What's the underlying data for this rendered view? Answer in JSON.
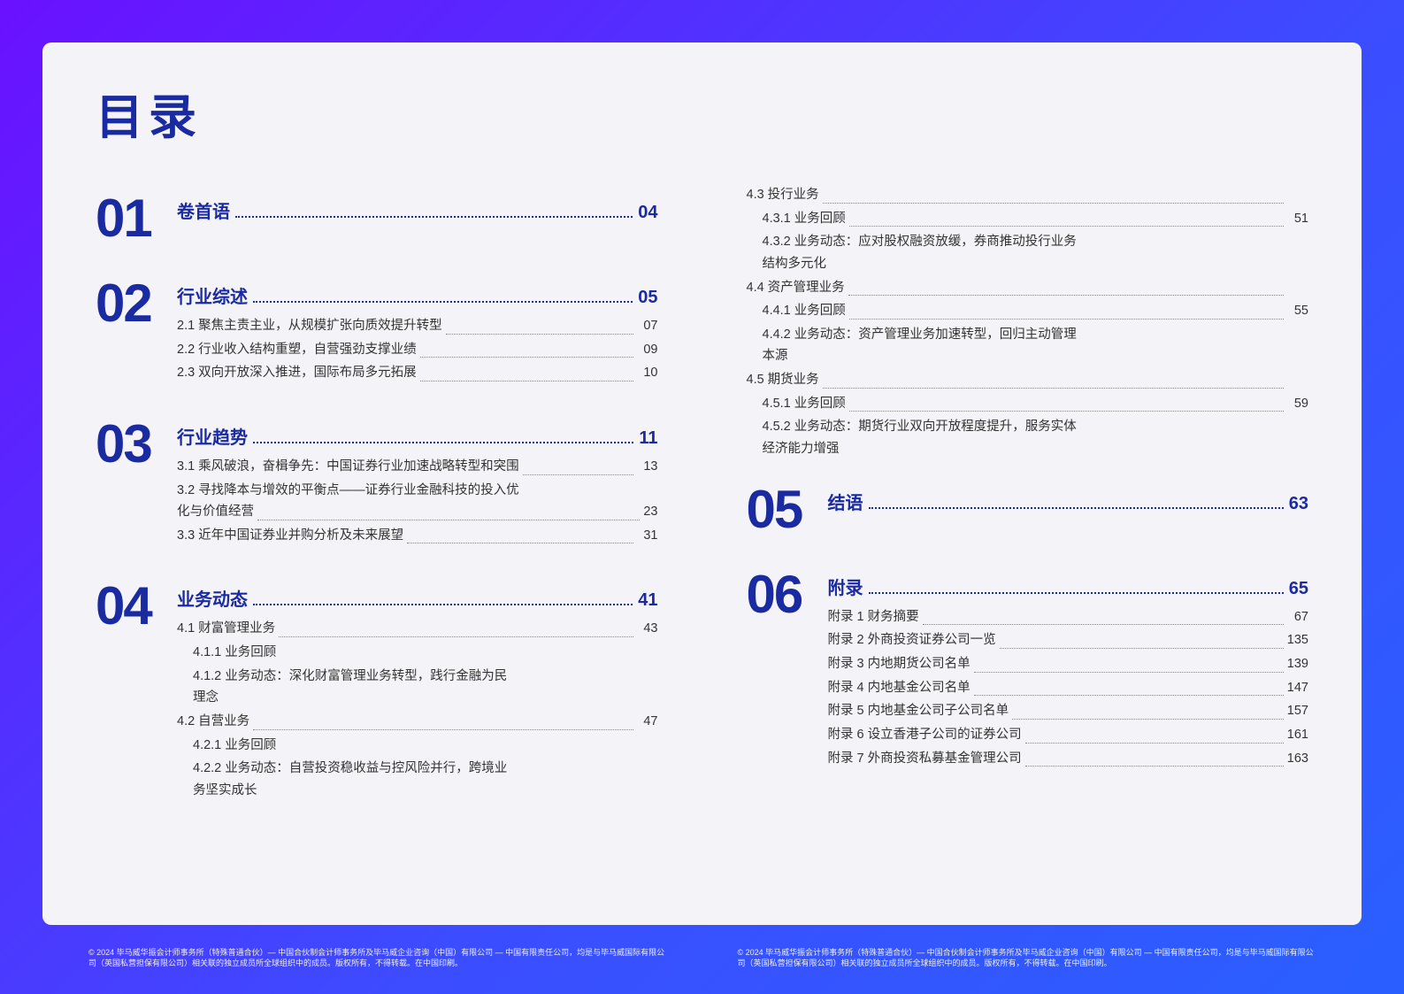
{
  "colors": {
    "accent": "#1a2aa0",
    "bg_card": "#f4f3f7",
    "bg_gradient_start": "#6a11ff",
    "bg_gradient_end": "#2a5fff",
    "text": "#333333",
    "dots_light": "#888888"
  },
  "title": "目录",
  "sections": [
    {
      "num": "01",
      "heading": "卷首语",
      "page": "04",
      "items": []
    },
    {
      "num": "02",
      "heading": "行业综述",
      "page": "05",
      "items": [
        {
          "label": "2.1 聚焦主责主业，从规模扩张向质效提升转型",
          "page": "07"
        },
        {
          "label": "2.2 行业收入结构重塑，自营强劲支撑业绩",
          "page": "09"
        },
        {
          "label": "2.3 双向开放深入推进，国际布局多元拓展",
          "page": "10"
        }
      ]
    },
    {
      "num": "03",
      "heading": "行业趋势",
      "page": "11",
      "items": [
        {
          "label": "3.1 乘风破浪，奋楫争先：中国证券行业加速战略转型和突围",
          "page": "13"
        },
        {
          "wrap": true,
          "line1": "3.2 寻找降本与增效的平衡点——证券行业金融科技的投入优",
          "line2": "化与价值经营",
          "page": "23"
        },
        {
          "label": "3.3 近年中国证券业并购分析及未来展望",
          "page": "31"
        }
      ]
    },
    {
      "num": "04",
      "heading": "业务动态",
      "page": "41",
      "items": [
        {
          "label": "4.1 财富管理业务",
          "page": "43"
        },
        {
          "label": "4.1.1 业务回顾",
          "indent": 1,
          "nopg": true
        },
        {
          "wrap": true,
          "indent": 1,
          "line1": "4.1.2 业务动态：深化财富管理业务转型，践行金融为民",
          "line2": "理念",
          "nopg": true
        },
        {
          "label": "4.2 自营业务",
          "page": "47"
        },
        {
          "label": "4.2.1 业务回顾",
          "indent": 1,
          "nopg": true
        },
        {
          "wrap": true,
          "indent": 1,
          "line1": "4.2.2 业务动态：自营投资稳收益与控风险并行，跨境业",
          "line2": "务坚实成长",
          "nopg": true
        }
      ]
    }
  ],
  "right_continued": [
    {
      "label": "4.3 投行业务",
      "page": ""
    },
    {
      "label": "4.3.1 业务回顾",
      "indent": 1,
      "page": "51"
    },
    {
      "wrap": true,
      "indent": 1,
      "line1": "4.3.2 业务动态：应对股权融资放缓，券商推动投行业务",
      "line2": "结构多元化",
      "nopg": true
    },
    {
      "label": "4.4 资产管理业务",
      "page": ""
    },
    {
      "label": "4.4.1 业务回顾",
      "indent": 1,
      "page": "55"
    },
    {
      "wrap": true,
      "indent": 1,
      "line1": "4.4.2 业务动态：资产管理业务加速转型，回归主动管理",
      "line2": "本源",
      "nopg": true
    },
    {
      "label": "4.5 期货业务",
      "page": ""
    },
    {
      "label": "4.5.1 业务回顾",
      "indent": 1,
      "page": "59"
    },
    {
      "wrap": true,
      "indent": 1,
      "line1": "4.5.2 业务动态：期货行业双向开放程度提升，服务实体",
      "line2": "经济能力增强",
      "nopg": true
    }
  ],
  "right_sections": [
    {
      "num": "05",
      "heading": "结语",
      "page": "63",
      "items": []
    },
    {
      "num": "06",
      "heading": "附录",
      "page": "65",
      "items": [
        {
          "label": "附录 1 财务摘要",
          "page": "67"
        },
        {
          "label": "附录 2 外商投资证券公司一览",
          "page": "135"
        },
        {
          "label": "附录 3 内地期货公司名单",
          "page": "139"
        },
        {
          "label": "附录 4 内地基金公司名单",
          "page": "147"
        },
        {
          "label": "附录 5 内地基金公司子公司名单",
          "page": "157"
        },
        {
          "label": "附录 6 设立香港子公司的证券公司",
          "page": "161"
        },
        {
          "label": "附录 7 外商投资私募基金管理公司",
          "page": "163"
        }
      ]
    }
  ],
  "footer": "© 2024 毕马威华振会计师事务所（特殊普通合伙）— 中国合伙制会计师事务所及毕马威企业咨询（中国）有限公司 — 中国有限责任公司，均是与毕马威国际有限公司（英国私营担保有限公司）相关联的独立成员所全球组织中的成员。版权所有，不得转载。在中国印刷。"
}
